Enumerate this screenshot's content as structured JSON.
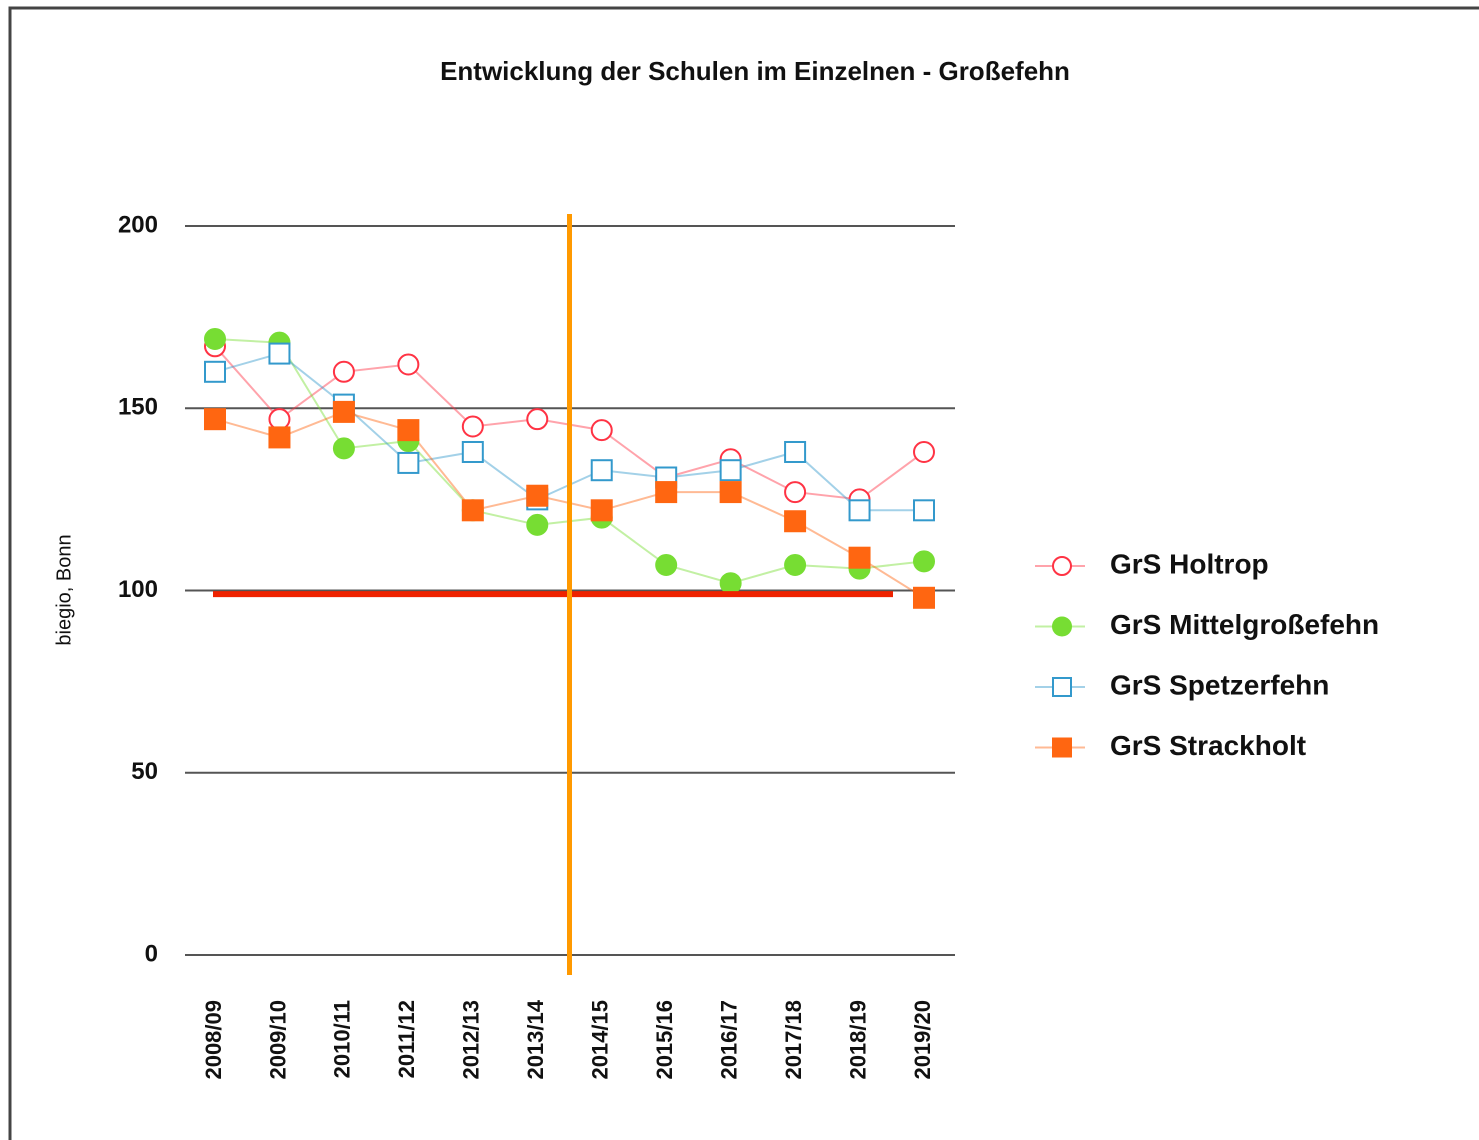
{
  "chart_data": {
    "type": "line",
    "title": "Entwicklung der Schulen im Einzelnen - Großefehn",
    "y_label": "biegio, Bonn",
    "categories": [
      "2008/09",
      "2009/10",
      "2010/11",
      "2011/12",
      "2012/13",
      "2013/14",
      "2014/15",
      "2015/16",
      "2016/17",
      "2017/18",
      "2018/19",
      "2019/20"
    ],
    "series": [
      {
        "name": "GrS Holtrop",
        "color": "#ff3344",
        "marker": "open-circle",
        "values": [
          167,
          147,
          160,
          162,
          145,
          147,
          144,
          131,
          136,
          127,
          125,
          138
        ]
      },
      {
        "name": "GrS Mittelgroßefehn",
        "color": "#77dd33",
        "marker": "filled-circle",
        "values": [
          169,
          168,
          139,
          141,
          122,
          118,
          120,
          107,
          102,
          107,
          106,
          108
        ]
      },
      {
        "name": "GrS Spetzerfehn",
        "color": "#3399cc",
        "marker": "open-square",
        "values": [
          160,
          165,
          151,
          135,
          138,
          125,
          133,
          131,
          133,
          138,
          122,
          122
        ]
      },
      {
        "name": "GrS Strackholt",
        "color": "#ff6611",
        "marker": "filled-square",
        "values": [
          147,
          142,
          149,
          144,
          122,
          126,
          122,
          127,
          127,
          119,
          109,
          98
        ]
      }
    ],
    "reference_line": 99,
    "ylim": [
      0,
      200
    ],
    "yticks": [
      0,
      50,
      100,
      150,
      200
    ],
    "grid": true,
    "legend": "right"
  }
}
